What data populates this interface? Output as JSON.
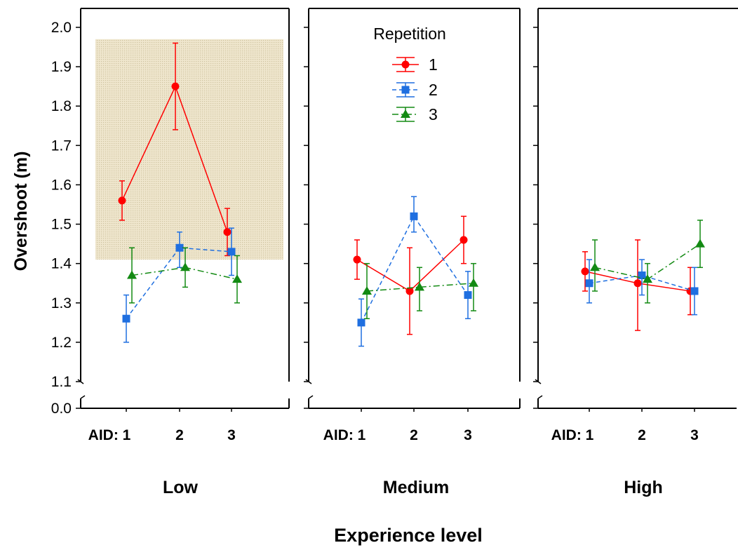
{
  "chart_data": {
    "type": "line",
    "ylabel": "Overshoot (m)",
    "xlabel": "Experience level",
    "y_ticks": [
      "0.0",
      "1.1",
      "1.2",
      "1.3",
      "1.4",
      "1.5",
      "1.6",
      "1.7",
      "1.8",
      "1.9",
      "2.0"
    ],
    "y_axis_break": "between 0.0 and 1.1",
    "ylim": [
      1.1,
      2.0
    ],
    "legend": {
      "title": "Repetition",
      "placement": "inside middle panel, top"
    },
    "categories": [
      "AID: 1",
      "2",
      "3"
    ],
    "highlight_region": {
      "panel": "Low",
      "x_range": [
        "AID: 1",
        "3"
      ],
      "y_range": [
        1.41,
        1.97
      ],
      "color": "#e6dcc0"
    },
    "panels": [
      {
        "label": "Low",
        "series": [
          {
            "name": "1",
            "color": "#ff0000",
            "marker": "circle",
            "dash": "solid",
            "values": [
              1.56,
              1.85,
              1.48
            ],
            "error_low": [
              1.51,
              1.74,
              1.42
            ],
            "error_high": [
              1.61,
              1.96,
              1.54
            ]
          },
          {
            "name": "2",
            "color": "#1f6fe0",
            "marker": "square",
            "dash": "dashed",
            "values": [
              1.26,
              1.44,
              1.43
            ],
            "error_low": [
              1.2,
              1.39,
              1.37
            ],
            "error_high": [
              1.32,
              1.48,
              1.49
            ]
          },
          {
            "name": "3",
            "color": "#138a13",
            "marker": "triangle",
            "dash": "dashdot",
            "values": [
              1.37,
              1.39,
              1.36
            ],
            "error_low": [
              1.3,
              1.34,
              1.3
            ],
            "error_high": [
              1.44,
              1.44,
              1.42
            ]
          }
        ]
      },
      {
        "label": "Medium",
        "series": [
          {
            "name": "1",
            "color": "#ff0000",
            "marker": "circle",
            "dash": "solid",
            "values": [
              1.41,
              1.33,
              1.46
            ],
            "error_low": [
              1.36,
              1.22,
              1.4
            ],
            "error_high": [
              1.46,
              1.44,
              1.52
            ]
          },
          {
            "name": "2",
            "color": "#1f6fe0",
            "marker": "square",
            "dash": "dashed",
            "values": [
              1.25,
              1.52,
              1.32
            ],
            "error_low": [
              1.19,
              1.48,
              1.26
            ],
            "error_high": [
              1.31,
              1.57,
              1.38
            ]
          },
          {
            "name": "3",
            "color": "#138a13",
            "marker": "triangle",
            "dash": "dashdot",
            "values": [
              1.33,
              1.34,
              1.35
            ],
            "error_low": [
              1.26,
              1.28,
              1.28
            ],
            "error_high": [
              1.4,
              1.39,
              1.4
            ]
          }
        ]
      },
      {
        "label": "High",
        "series": [
          {
            "name": "1",
            "color": "#ff0000",
            "marker": "circle",
            "dash": "solid",
            "values": [
              1.38,
              1.35,
              1.33
            ],
            "error_low": [
              1.33,
              1.23,
              1.27
            ],
            "error_high": [
              1.43,
              1.46,
              1.39
            ]
          },
          {
            "name": "2",
            "color": "#1f6fe0",
            "marker": "square",
            "dash": "dashed",
            "values": [
              1.35,
              1.37,
              1.33
            ],
            "error_low": [
              1.3,
              1.32,
              1.27
            ],
            "error_high": [
              1.41,
              1.41,
              1.39
            ]
          },
          {
            "name": "3",
            "color": "#138a13",
            "marker": "triangle",
            "dash": "dashdot",
            "values": [
              1.39,
              1.36,
              1.45
            ],
            "error_low": [
              1.33,
              1.3,
              1.39
            ],
            "error_high": [
              1.46,
              1.4,
              1.51
            ]
          }
        ]
      }
    ]
  }
}
